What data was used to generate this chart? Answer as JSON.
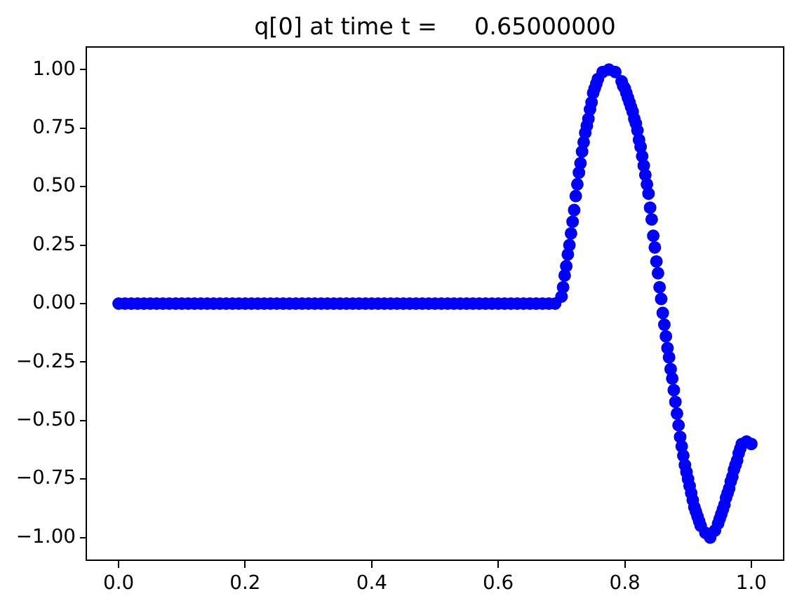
{
  "chart_data": {
    "type": "scatter",
    "title": "q[0] at time t =     0.65000000",
    "color": "#0000ff",
    "marker": "circle",
    "grid": false,
    "legend": false,
    "xlim": [
      -0.05,
      1.05
    ],
    "ylim": [
      -1.1,
      1.1
    ],
    "xticks": [
      {
        "value": 0,
        "label": "0.0"
      },
      0.2,
      0.4,
      0.6,
      0.8,
      {
        "value": 1,
        "label": "1.0"
      }
    ],
    "yticks": [
      {
        "value": -1,
        "label": "−1.00"
      },
      {
        "value": -0.75,
        "label": "−0.75"
      },
      {
        "value": -0.5,
        "label": "−0.50"
      },
      {
        "value": -0.25,
        "label": "−0.25"
      },
      {
        "value": 0,
        "label": "0.00"
      },
      0.25,
      {
        "value": 0.5,
        "label": "0.50"
      },
      0.75,
      {
        "value": 1,
        "label": "1.00"
      }
    ],
    "x": [
      0,
      0.01,
      0.02,
      0.03,
      0.04,
      0.05,
      0.06,
      0.07,
      0.08,
      0.09,
      0.1,
      0.11,
      0.12,
      0.13,
      0.14,
      0.15,
      0.16,
      0.17,
      0.18,
      0.19,
      0.2,
      0.21,
      0.22,
      0.23,
      0.24,
      0.25,
      0.26,
      0.27,
      0.28,
      0.29,
      0.3,
      0.31,
      0.32,
      0.33,
      0.34,
      0.35,
      0.36,
      0.37,
      0.38,
      0.39,
      0.4,
      0.41,
      0.42,
      0.43,
      0.44,
      0.45,
      0.46,
      0.47,
      0.48,
      0.49,
      0.5,
      0.51,
      0.52,
      0.53,
      0.54,
      0.55,
      0.56,
      0.57,
      0.58,
      0.59,
      0.6,
      0.61,
      0.62,
      0.63,
      0.64,
      0.65,
      0.66,
      0.67,
      0.68,
      0.69,
      0.7,
      0.7025,
      0.705,
      0.7075,
      0.71,
      0.7125,
      0.715,
      0.7175,
      0.72,
      0.7225,
      0.725,
      0.7275,
      0.73,
      0.7325,
      0.735,
      0.7375,
      0.74,
      0.7425,
      0.745,
      0.7475,
      0.75,
      0.7525,
      0.755,
      0.7575,
      0.765,
      0.775,
      0.785,
      0.795,
      0.7975,
      0.8,
      0.8025,
      0.805,
      0.8075,
      0.81,
      0.8125,
      0.815,
      0.8175,
      0.82,
      0.8225,
      0.825,
      0.8275,
      0.83,
      0.8325,
      0.835,
      0.8375,
      0.84,
      0.8425,
      0.845,
      0.8475,
      0.85,
      0.8525,
      0.855,
      0.8575,
      0.86,
      0.8625,
      0.865,
      0.8675,
      0.87,
      0.8725,
      0.875,
      0.8775,
      0.88,
      0.8825,
      0.885,
      0.8875,
      0.89,
      0.8925,
      0.895,
      0.8975,
      0.9,
      0.9025,
      0.905,
      0.9075,
      0.91,
      0.9125,
      0.915,
      0.9175,
      0.92,
      0.9275,
      0.935,
      0.9425,
      0.9475,
      0.95,
      0.9525,
      0.955,
      0.9575,
      0.96,
      0.9625,
      0.965,
      0.9675,
      0.97,
      0.9725,
      0.975,
      0.9775,
      0.98,
      0.9825,
      0.985,
      0.9925,
      1
    ],
    "values": [
      0,
      0,
      0,
      0,
      0,
      0,
      0,
      0,
      0,
      0,
      0,
      0,
      0,
      0,
      0,
      0,
      0,
      0,
      0,
      0,
      0,
      0,
      0,
      0,
      0,
      0,
      0,
      0,
      0,
      0,
      0,
      0,
      0,
      0,
      0,
      0,
      0,
      0,
      0,
      0,
      0,
      0,
      0,
      0,
      0,
      0,
      0,
      0,
      0,
      0,
      0,
      0,
      0,
      0,
      0,
      0,
      0,
      0,
      0,
      0,
      0,
      0,
      0,
      0,
      0,
      0,
      0,
      0,
      0,
      0,
      0.03,
      0.07,
      0.12,
      0.16,
      0.21,
      0.25,
      0.3,
      0.35,
      0.4,
      0.46,
      0.51,
      0.56,
      0.6,
      0.65,
      0.69,
      0.73,
      0.76,
      0.79,
      0.83,
      0.86,
      0.9,
      0.92,
      0.94,
      0.96,
      0.99,
      1,
      0.99,
      0.95,
      0.93,
      0.92,
      0.9,
      0.88,
      0.86,
      0.84,
      0.82,
      0.79,
      0.77,
      0.74,
      0.7,
      0.67,
      0.63,
      0.59,
      0.55,
      0.51,
      0.47,
      0.41,
      0.36,
      0.29,
      0.24,
      0.18,
      0.13,
      0.07,
      0.02,
      -0.04,
      -0.09,
      -0.14,
      -0.19,
      -0.23,
      -0.28,
      -0.32,
      -0.37,
      -0.42,
      -0.47,
      -0.52,
      -0.57,
      -0.61,
      -0.65,
      -0.69,
      -0.72,
      -0.75,
      -0.78,
      -0.81,
      -0.84,
      -0.87,
      -0.89,
      -0.91,
      -0.93,
      -0.95,
      -0.98,
      -1,
      -0.97,
      -0.94,
      -0.92,
      -0.9,
      -0.88,
      -0.86,
      -0.83,
      -0.81,
      -0.79,
      -0.76,
      -0.74,
      -0.71,
      -0.69,
      -0.67,
      -0.64,
      -0.62,
      -0.6,
      -0.59,
      -0.6
    ]
  }
}
